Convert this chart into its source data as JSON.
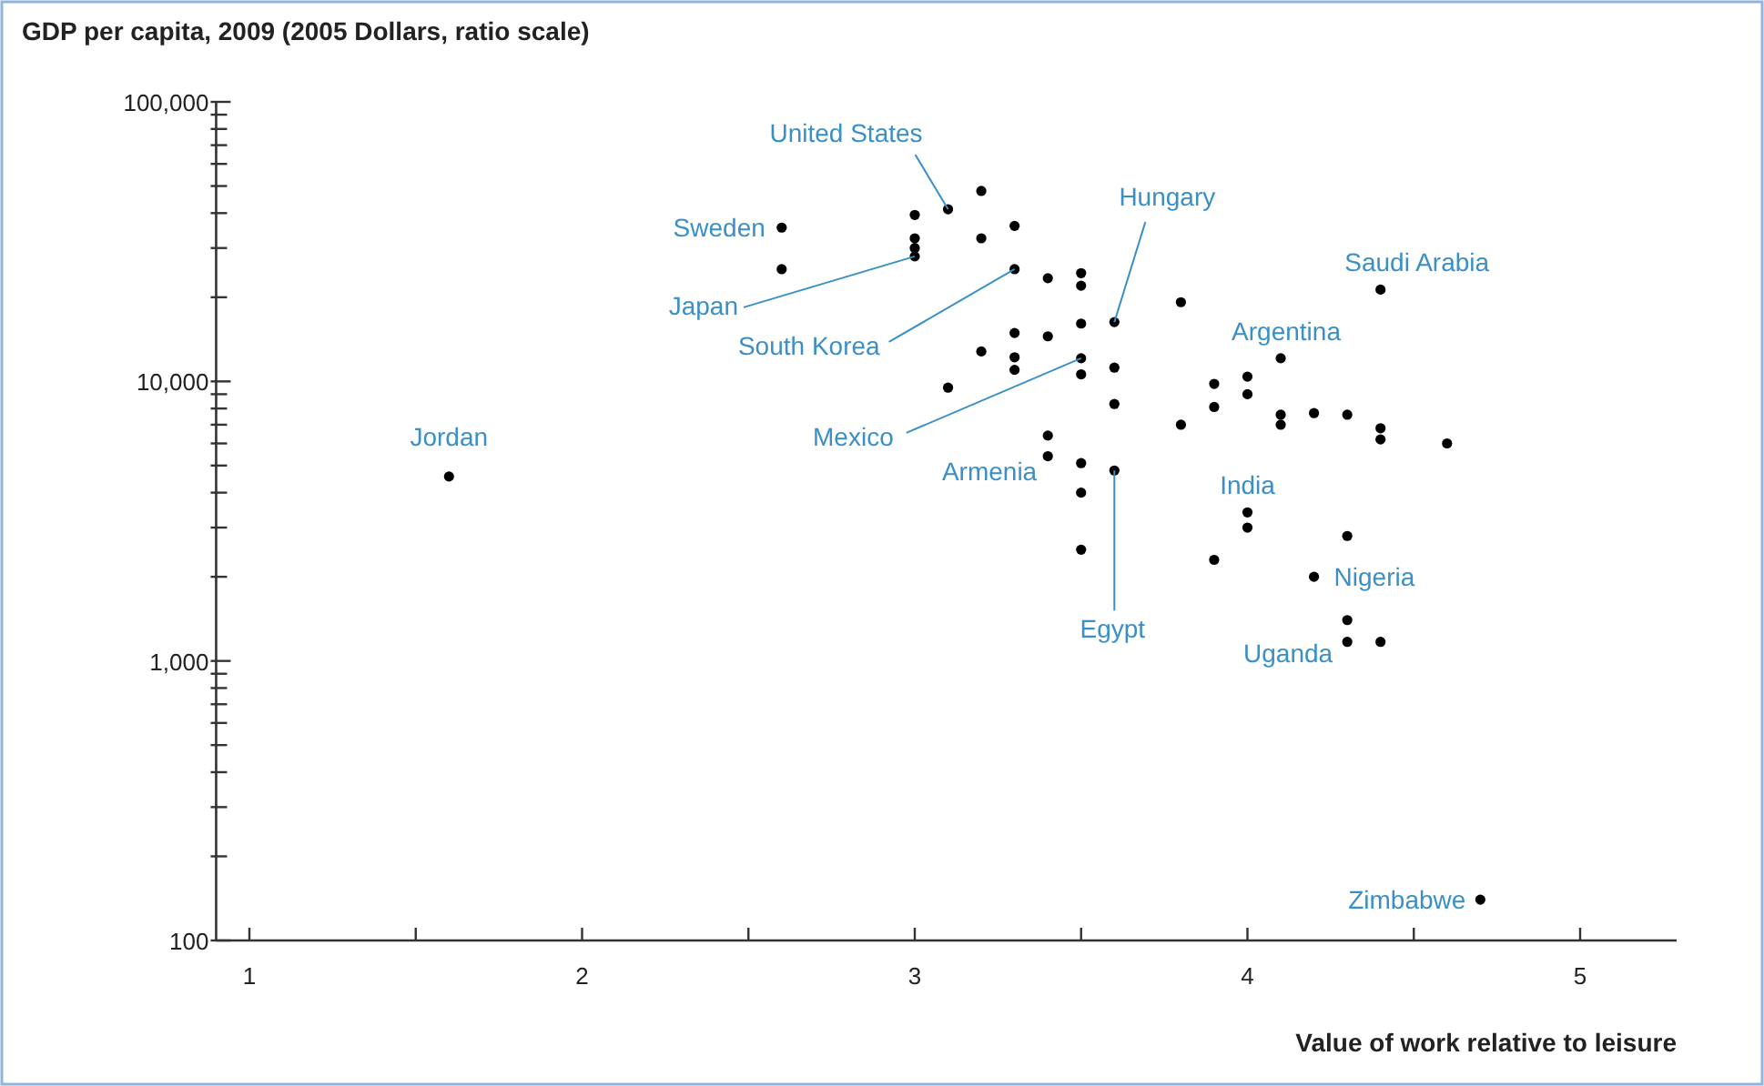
{
  "chart_data": {
    "type": "scatter",
    "ylabel": "GDP per capita, 2009 (2005 Dollars, ratio scale)",
    "xlabel": "Value of work relative to leisure",
    "log": "y",
    "grid": false,
    "marker": "circle",
    "xlim": [
      0.9,
      5.29
    ],
    "ylim": [
      100,
      100000
    ],
    "xticks": [
      1,
      {
        "value": 1.5,
        "label": null
      },
      2,
      {
        "value": 2.5,
        "label": null
      },
      3,
      {
        "value": 3.5,
        "label": null
      },
      4,
      {
        "value": 4.5,
        "label": null
      },
      5
    ],
    "yticks": [
      {
        "value": 100,
        "label": "100"
      },
      {
        "value": 200,
        "label": null
      },
      {
        "value": 300,
        "label": null
      },
      {
        "value": 400,
        "label": null
      },
      {
        "value": 500,
        "label": null
      },
      {
        "value": 600,
        "label": null
      },
      {
        "value": 700,
        "label": null
      },
      {
        "value": 800,
        "label": null
      },
      {
        "value": 900,
        "label": null
      },
      {
        "value": 1000,
        "label": "1,000"
      },
      {
        "value": 2000,
        "label": null
      },
      {
        "value": 3000,
        "label": null
      },
      {
        "value": 4000,
        "label": null
      },
      {
        "value": 5000,
        "label": null
      },
      {
        "value": 6000,
        "label": null
      },
      {
        "value": 7000,
        "label": null
      },
      {
        "value": 8000,
        "label": null
      },
      {
        "value": 9000,
        "label": null
      },
      {
        "value": 10000,
        "label": "10,000"
      },
      {
        "value": 20000,
        "label": null
      },
      {
        "value": 30000,
        "label": null
      },
      {
        "value": 40000,
        "label": null
      },
      {
        "value": 50000,
        "label": null
      },
      {
        "value": 60000,
        "label": null
      },
      {
        "value": 70000,
        "label": null
      },
      {
        "value": 80000,
        "label": null
      },
      {
        "value": 90000,
        "label": null
      },
      {
        "value": 100000,
        "label": "100,000"
      }
    ],
    "series": [
      {
        "color": "#000000",
        "x": [
          1.6,
          2.6,
          2.6,
          3.0,
          3.0,
          3.0,
          3.0,
          3.1,
          3.2,
          3.2,
          3.3,
          3.3,
          3.4,
          3.5,
          3.5,
          3.6,
          3.8,
          4.4,
          3.3,
          3.3,
          3.3,
          3.2,
          3.1,
          3.4,
          3.5,
          3.5,
          3.5,
          3.6,
          3.6,
          3.8,
          3.9,
          3.9,
          4.0,
          4.0,
          4.1,
          4.1,
          4.1,
          4.2,
          4.3,
          4.4,
          4.4,
          4.6,
          3.4,
          3.4,
          3.5,
          3.5,
          3.5,
          3.6,
          4.0,
          4.0,
          3.9,
          4.3,
          4.2,
          4.3,
          4.3,
          4.4,
          4.7
        ],
        "values": [
          4570,
          35500,
          25200,
          39400,
          32500,
          30000,
          28000,
          41300,
          48000,
          32500,
          36000,
          25200,
          23400,
          24400,
          22000,
          16300,
          19200,
          21300,
          14900,
          12200,
          11000,
          12800,
          9500,
          14500,
          16100,
          12100,
          10600,
          11200,
          8300,
          7000,
          9800,
          8100,
          10400,
          9000,
          12100,
          7600,
          7000,
          7700,
          7600,
          6800,
          6200,
          6000,
          6400,
          5400,
          5100,
          4000,
          2500,
          4800,
          3400,
          3000,
          2300,
          2800,
          2000,
          1400,
          1170,
          1170,
          140
        ]
      }
    ],
    "annotations": [
      {
        "text": "Jordan",
        "x": 1.6,
        "y": 4570
      },
      {
        "text": "Sweden",
        "x": 2.6,
        "y": 35500
      },
      {
        "text": "Japan",
        "x": 3.0,
        "y": 28000
      },
      {
        "text": "South Korea",
        "x": 3.3,
        "y": 25200
      },
      {
        "text": "United States",
        "x": 3.1,
        "y": 41300
      },
      {
        "text": "Hungary",
        "x": 3.6,
        "y": 16300
      },
      {
        "text": "Saudi Arabia",
        "x": 4.4,
        "y": 21300
      },
      {
        "text": "Argentina",
        "x": 4.1,
        "y": 12100
      },
      {
        "text": "Mexico",
        "x": 3.5,
        "y": 12100
      },
      {
        "text": "Armenia",
        "x": 3.4,
        "y": 5400
      },
      {
        "text": "Egypt",
        "x": 3.6,
        "y": 4800
      },
      {
        "text": "India",
        "x": 4.0,
        "y": 3400
      },
      {
        "text": "Nigeria",
        "x": 4.2,
        "y": 2000
      },
      {
        "text": "Uganda",
        "x": 4.3,
        "y": 1170
      },
      {
        "text": "Zimbabwe",
        "x": 4.7,
        "y": 140
      }
    ]
  }
}
